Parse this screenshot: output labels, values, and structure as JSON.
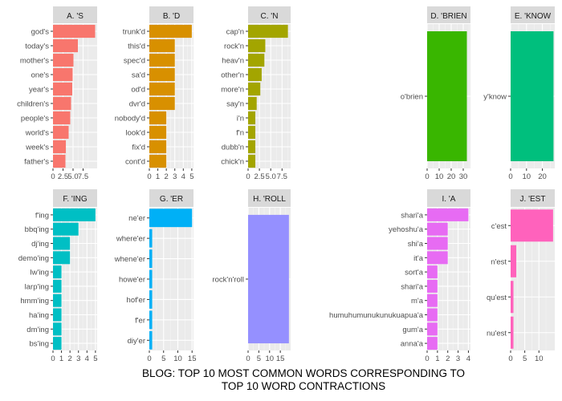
{
  "caption": {
    "line1": "BLOG: TOP 10 MOST COMMON WORDS CORRESPONDING TO",
    "line2": "TOP 10 WORD CONTRACTIONS"
  },
  "chart_data": [
    {
      "type": "bar",
      "orientation": "horizontal",
      "facet": "A. 'S",
      "color": "#F8766D",
      "categories": [
        "god's",
        "today's",
        "mother's",
        "one's",
        "year's",
        "children's",
        "people's",
        "world's",
        "week's",
        "father's"
      ],
      "values": [
        10.5,
        6.2,
        5.1,
        4.9,
        4.8,
        4.5,
        4.3,
        3.9,
        3.2,
        3.1
      ],
      "xlim": [
        0,
        11
      ],
      "xticks": [
        0,
        2.5,
        5.0,
        7.5
      ],
      "xtick_labels": [
        "0",
        "2.5",
        "5.0",
        "7.5"
      ]
    },
    {
      "type": "bar",
      "orientation": "horizontal",
      "facet": "B. 'D",
      "color": "#D89000",
      "categories": [
        "trunk'd",
        "this'd",
        "spec'd",
        "sa'd",
        "od'd",
        "dvr'd",
        "nobody'd",
        "look'd",
        "fix'd",
        "cont'd"
      ],
      "values": [
        5,
        3,
        3,
        3,
        3,
        3,
        2,
        2,
        2,
        2
      ],
      "xlim": [
        0,
        5.2
      ],
      "xticks": [
        0,
        1,
        2,
        3,
        4,
        5
      ],
      "xtick_labels": [
        "0",
        "1",
        "2",
        "3",
        "4",
        "5"
      ]
    },
    {
      "type": "bar",
      "orientation": "horizontal",
      "facet": "C. 'N",
      "color": "#A3A500",
      "categories": [
        "cap'n",
        "rock'n",
        "heav'n",
        "other'n",
        "more'n",
        "say'n",
        "i'n",
        "f'n",
        "dubb'n",
        "chick'n"
      ],
      "values": [
        8.8,
        3.8,
        3.6,
        3.0,
        2.7,
        1.9,
        1.6,
        1.6,
        1.6,
        1.6
      ],
      "xlim": [
        0,
        9.4
      ],
      "xticks": [
        0,
        2.5,
        5.0,
        7.5
      ],
      "xtick_labels": [
        "0",
        "2.5",
        "5.0",
        "7.5"
      ]
    },
    {
      "type": "bar",
      "orientation": "horizontal",
      "facet": "D. 'BRIEN",
      "color": "#39B600",
      "categories": [
        "o'brien"
      ],
      "values": [
        33
      ],
      "xlim": [
        0,
        36
      ],
      "xticks": [
        0,
        10,
        20,
        30
      ],
      "xtick_labels": [
        "0",
        "10",
        "20",
        "30"
      ]
    },
    {
      "type": "bar",
      "orientation": "horizontal",
      "facet": "E. 'KNOW",
      "color": "#00BF7D",
      "categories": [
        "y'know"
      ],
      "values": [
        27
      ],
      "xlim": [
        0,
        27.8
      ],
      "xticks": [
        0,
        10,
        20
      ],
      "xtick_labels": [
        "0",
        "10",
        "20"
      ]
    },
    {
      "type": "bar",
      "orientation": "horizontal",
      "facet": "F. 'ING",
      "color": "#00BFC4",
      "categories": [
        "f'ing",
        "bbq'ing",
        "dj'ing",
        "demo'ing",
        "lw'ing",
        "larp'ing",
        "hmm'ing",
        "ha'ing",
        "dm'ing",
        "bs'ing"
      ],
      "values": [
        5,
        3,
        2,
        2,
        1,
        1,
        1,
        1,
        1,
        1
      ],
      "xlim": [
        0,
        5.2
      ],
      "xticks": [
        0,
        1,
        2,
        3,
        4,
        5
      ],
      "xtick_labels": [
        "0",
        "1",
        "2",
        "3",
        "4",
        "5"
      ]
    },
    {
      "type": "bar",
      "orientation": "horizontal",
      "facet": "G. 'ER",
      "color": "#00B0F6",
      "categories": [
        "ne'er",
        "where'er",
        "whene'er",
        "howe'er",
        "hof'er",
        "f'er",
        "diy'er"
      ],
      "values": [
        15,
        1,
        1,
        1,
        1,
        1,
        1
      ],
      "xlim": [
        0,
        15.5
      ],
      "xticks": [
        0,
        5,
        10,
        15
      ],
      "xtick_labels": [
        "0",
        "5",
        "10",
        "15"
      ]
    },
    {
      "type": "bar",
      "orientation": "horizontal",
      "facet": "H. 'ROLL",
      "color": "#9590FF",
      "categories": [
        "rock'n'roll"
      ],
      "values": [
        19
      ],
      "xlim": [
        0,
        19.8
      ],
      "xticks": [
        0,
        5,
        10,
        15
      ],
      "xtick_labels": [
        "0",
        "5",
        "10",
        "15"
      ]
    },
    {
      "type": "bar",
      "orientation": "horizontal",
      "facet": "I. 'A",
      "color": "#E76BF3",
      "categories": [
        "shari'a",
        "yehoshu'a",
        "shi'a",
        "it'a",
        "sort'a",
        "shari'a",
        "m'a",
        "humuhumunukunukuapua'a",
        "gum'a",
        "anna'a"
      ],
      "values": [
        4,
        2,
        2,
        2,
        1,
        1,
        1,
        1,
        1,
        1
      ],
      "xlim": [
        0,
        4.2
      ],
      "xticks": [
        0,
        1,
        2,
        3,
        4
      ],
      "xtick_labels": [
        "0",
        "1",
        "2",
        "3",
        "4"
      ]
    },
    {
      "type": "bar",
      "orientation": "horizontal",
      "facet": "J. 'EST",
      "color": "#FF62BC",
      "categories": [
        "c'est",
        "n'est",
        "qu'est",
        "nu'est"
      ],
      "values": [
        15,
        2,
        1,
        1
      ],
      "xlim": [
        0,
        15.6
      ],
      "xticks": [
        0,
        5,
        10
      ],
      "xtick_labels": [
        "0",
        "5",
        "10"
      ]
    }
  ]
}
